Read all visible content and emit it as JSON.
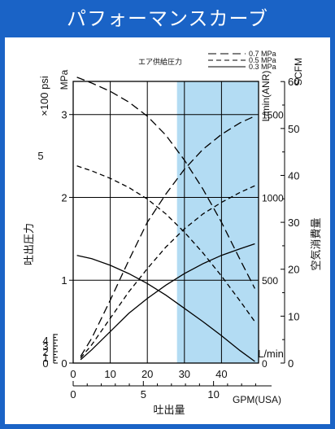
{
  "chart_data": {
    "type": "line",
    "title": "パフォーマンスカーブ",
    "legend_title": "エア供給圧力",
    "legend_entries": [
      "0.7 MPa",
      "0.5 MPa",
      "0.3 MPa"
    ],
    "left_axis_outer_label": "吐出圧力",
    "left_axis_psi_label": "×100 psi",
    "left_axis_mpa_label": "MPa",
    "right_axis_lmin_label": "L/min(ANR)",
    "right_axis_scfm_label": "SCFM",
    "right_axis_outer_label": "空気消費量",
    "x_label": "吐出量",
    "x_lmin_unit": "L/min",
    "x_gpm_unit": "GPM(USA)",
    "x_lmin_ticks": [
      "0",
      "10",
      "20",
      "30",
      "40"
    ],
    "x_gpm_ticks": [
      "0",
      "5",
      "10"
    ],
    "mpa_ticks": [
      "0",
      "1",
      "2",
      "3"
    ],
    "psi_ticks": [
      "0",
      "1",
      "2",
      "3",
      "4",
      "5"
    ],
    "anr_ticks": [
      "0",
      "500",
      "1000",
      "1500"
    ],
    "scfm_ticks": [
      "0",
      "10",
      "20",
      "30",
      "40",
      "50",
      "60"
    ],
    "xlim": [
      0,
      50
    ],
    "ylim_mpa": [
      0,
      3.4
    ],
    "ylim_anr": [
      0,
      1700
    ],
    "highlight_range_lmin": [
      28,
      50
    ],
    "highlight_color": "#b3dcf3",
    "series": [
      {
        "name": "0.7 MPa",
        "quantity": "discharge pressure",
        "style": "long-dash",
        "x": [
          1,
          5,
          10,
          15,
          20,
          25,
          30,
          35,
          40,
          45,
          49
        ],
        "y": [
          3.45,
          3.38,
          3.28,
          3.15,
          2.98,
          2.75,
          2.45,
          2.1,
          1.7,
          1.25,
          0.9
        ]
      },
      {
        "name": "0.5 MPa",
        "quantity": "discharge pressure",
        "style": "short-dash",
        "x": [
          1,
          5,
          10,
          15,
          20,
          25,
          30,
          35,
          40,
          45,
          49
        ],
        "y": [
          2.38,
          2.32,
          2.23,
          2.12,
          1.98,
          1.8,
          1.58,
          1.33,
          1.05,
          0.75,
          0.5
        ]
      },
      {
        "name": "0.3 MPa",
        "quantity": "discharge pressure",
        "style": "solid",
        "x": [
          1,
          5,
          10,
          15,
          20,
          25,
          30,
          35,
          40,
          45,
          49
        ],
        "y": [
          1.3,
          1.26,
          1.18,
          1.08,
          0.96,
          0.82,
          0.66,
          0.5,
          0.33,
          0.15,
          0.02
        ]
      },
      {
        "name": "0.7 MPa",
        "quantity": "air consumption",
        "style": "long-dash",
        "x": [
          2,
          5,
          10,
          15,
          20,
          25,
          30,
          35,
          40,
          45,
          49
        ],
        "y": [
          40,
          150,
          380,
          620,
          850,
          1020,
          1170,
          1290,
          1380,
          1450,
          1490
        ]
      },
      {
        "name": "0.5 MPa",
        "quantity": "air consumption",
        "style": "short-dash",
        "x": [
          2,
          5,
          10,
          15,
          20,
          25,
          30,
          35,
          40,
          45,
          49
        ],
        "y": [
          30,
          110,
          270,
          430,
          570,
          700,
          810,
          900,
          970,
          1030,
          1070
        ]
      },
      {
        "name": "0.3 MPa",
        "quantity": "air consumption",
        "style": "solid",
        "x": [
          2,
          5,
          10,
          15,
          20,
          25,
          30,
          35,
          40,
          45,
          49
        ],
        "y": [
          20,
          80,
          190,
          300,
          390,
          470,
          540,
          600,
          650,
          690,
          720
        ]
      }
    ]
  }
}
